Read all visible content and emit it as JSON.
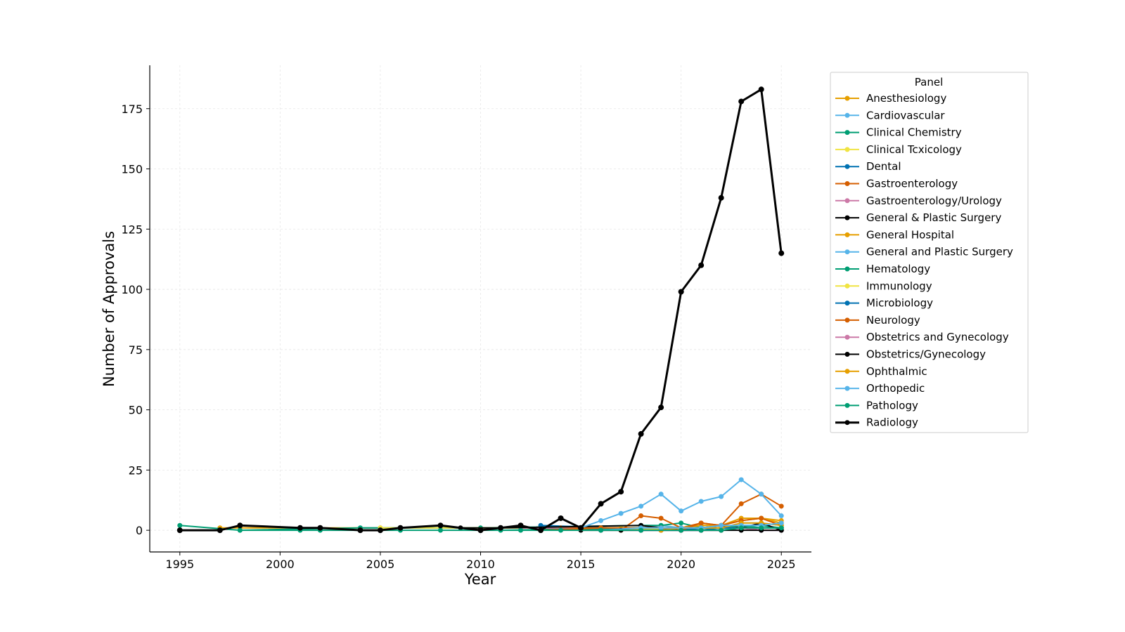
{
  "chart_data": {
    "type": "line",
    "xlabel": "Year",
    "ylabel": "Number of Approvals",
    "xlim": [
      1993.5,
      2026.5
    ],
    "ylim": [
      -9,
      193
    ],
    "xticks": [
      1995,
      2000,
      2005,
      2010,
      2015,
      2020,
      2025
    ],
    "yticks": [
      0,
      25,
      50,
      75,
      100,
      125,
      150,
      175
    ],
    "grid": true,
    "legend_title": "Panel",
    "legend_position": "outside-right-top",
    "series": [
      {
        "name": "Anesthesiology",
        "color": "#E69F00",
        "x": [
          1997,
          2005,
          2015,
          2020,
          2021,
          2022,
          2023,
          2024,
          2025
        ],
        "y": [
          1,
          1,
          1,
          1,
          2,
          2,
          5,
          5,
          4
        ]
      },
      {
        "name": "Cardiovascular",
        "color": "#56B4E9",
        "x": [
          2004,
          2014,
          2018,
          2019,
          2020,
          2021,
          2022,
          2023,
          2024,
          2025
        ],
        "y": [
          1,
          1,
          1,
          2,
          1,
          0,
          1,
          3,
          3,
          2
        ]
      },
      {
        "name": "Clinical Chemistry",
        "color": "#009E73",
        "x": [
          1995,
          1998,
          2004,
          2010,
          2018,
          2019,
          2020,
          2021,
          2022,
          2023,
          2024,
          2025
        ],
        "y": [
          2,
          0,
          1,
          1,
          2,
          2,
          3,
          1,
          1,
          2,
          2,
          1
        ]
      },
      {
        "name": "Clinical Tcxicology",
        "color": "#F0E442",
        "x": [
          2005,
          2017,
          2023,
          2025
        ],
        "y": [
          1,
          1,
          1,
          1
        ]
      },
      {
        "name": "Dental",
        "color": "#0072B2",
        "x": [
          2013,
          2020,
          2021,
          2022,
          2023,
          2024,
          2025
        ],
        "y": [
          2,
          0,
          0,
          1,
          1,
          0,
          0
        ]
      },
      {
        "name": "Gastroenterology",
        "color": "#D55E00",
        "x": [
          2014,
          2015,
          2016,
          2017,
          2018,
          2019,
          2020,
          2021,
          2022,
          2023,
          2024,
          2025
        ],
        "y": [
          1,
          1,
          1,
          0,
          6,
          5,
          1,
          3,
          2,
          11,
          15,
          10
        ]
      },
      {
        "name": "Gastroenterology/Urology",
        "color": "#CC79A7",
        "x": [
          2012,
          2020,
          2021,
          2022,
          2023,
          2024,
          2025
        ],
        "y": [
          1,
          0,
          0,
          0,
          1,
          0,
          0
        ]
      },
      {
        "name": "General & Plastic Surgery",
        "color": "#000000",
        "x": [
          2009,
          2011,
          2018,
          2019,
          2020,
          2021,
          2022,
          2023,
          2024,
          2025
        ],
        "y": [
          1,
          1,
          2,
          1,
          1,
          1,
          2,
          1,
          3,
          0
        ]
      },
      {
        "name": "General Hospital",
        "color": "#E69F00",
        "x": [
          2016,
          2019,
          2020,
          2021,
          2022,
          2023,
          2024,
          2025
        ],
        "y": [
          1,
          1,
          1,
          2,
          2,
          4,
          5,
          3
        ]
      },
      {
        "name": "General and Plastic Surgery",
        "color": "#56B4E9",
        "x": [
          2015,
          2016,
          2017,
          2018,
          2019,
          2020,
          2021,
          2022,
          2023,
          2024,
          2025
        ],
        "y": [
          1,
          4,
          7,
          10,
          15,
          8,
          12,
          14,
          21,
          15,
          6
        ]
      },
      {
        "name": "Hematology",
        "color": "#009E73",
        "x": [
          2011,
          2018,
          2020,
          2021,
          2022,
          2023,
          2024,
          2025
        ],
        "y": [
          0,
          1,
          0,
          1,
          1,
          2,
          1,
          1
        ]
      },
      {
        "name": "Immunology",
        "color": "#F0E442",
        "x": [
          2017,
          2020,
          2022,
          2023,
          2024,
          2025
        ],
        "y": [
          0,
          1,
          1,
          1,
          1,
          1
        ]
      },
      {
        "name": "Microbiology",
        "color": "#0072B2",
        "x": [
          2018,
          2020,
          2021,
          2022,
          2023,
          2024,
          2025
        ],
        "y": [
          0,
          0,
          1,
          1,
          1,
          1,
          1
        ]
      },
      {
        "name": "Neurology",
        "color": "#D55E00",
        "x": [
          2013,
          2016,
          2018,
          2019,
          2020,
          2021,
          2022,
          2023,
          2024,
          2025
        ],
        "y": [
          0,
          1,
          1,
          1,
          0,
          3,
          2,
          4,
          5,
          2
        ]
      },
      {
        "name": "Obstetrics and Gynecology",
        "color": "#CC79A7",
        "x": [
          2016,
          2020,
          2022,
          2023,
          2024,
          2025
        ],
        "y": [
          0,
          0,
          0,
          1,
          0,
          0
        ]
      },
      {
        "name": "Obstetrics/Gynecology",
        "color": "#000000",
        "x": [
          2015,
          2016,
          2017,
          2018,
          2019,
          2020,
          2021,
          2022,
          2023,
          2024,
          2025
        ],
        "y": [
          0,
          0,
          0,
          0,
          0,
          0,
          0,
          0,
          0,
          0,
          0
        ]
      },
      {
        "name": "Ophthalmic",
        "color": "#E69F00",
        "x": [
          2019,
          2020,
          2021,
          2022,
          2023,
          2024,
          2025
        ],
        "y": [
          0,
          1,
          1,
          1,
          3,
          3,
          2
        ]
      },
      {
        "name": "Orthopedic",
        "color": "#56B4E9",
        "x": [
          2016,
          2018,
          2019,
          2020,
          2021,
          2022,
          2023,
          2024,
          2025
        ],
        "y": [
          0,
          1,
          1,
          1,
          1,
          2,
          2,
          2,
          3
        ]
      },
      {
        "name": "Pathology",
        "color": "#009E73",
        "x": [
          1998,
          2001,
          2002,
          2004,
          2006,
          2008,
          2010,
          2012,
          2014,
          2016,
          2018,
          2020,
          2021,
          2022,
          2023,
          2024,
          2025
        ],
        "y": [
          0,
          0,
          0,
          0,
          0,
          0,
          0,
          0,
          0,
          0,
          0,
          0,
          0,
          0,
          1,
          1,
          1
        ]
      },
      {
        "name": "Radiology",
        "color": "#000000",
        "x": [
          1995,
          1997,
          1998,
          2001,
          2002,
          2004,
          2005,
          2006,
          2008,
          2010,
          2011,
          2012,
          2013,
          2014,
          2015,
          2016,
          2017,
          2018,
          2019,
          2020,
          2021,
          2022,
          2023,
          2024,
          2025
        ],
        "y": [
          0,
          0,
          2,
          1,
          1,
          0,
          0,
          1,
          2,
          0,
          1,
          2,
          0,
          5,
          1,
          11,
          16,
          40,
          51,
          99,
          110,
          138,
          178,
          183,
          115
        ]
      }
    ]
  }
}
